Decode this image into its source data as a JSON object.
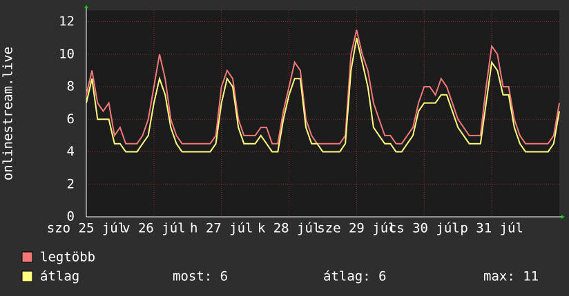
{
  "chart_data": {
    "type": "line",
    "y_axis_label": "onlinestream.live",
    "x": [
      0,
      2,
      4,
      6,
      8,
      10,
      12,
      14,
      16,
      18,
      20,
      22,
      24,
      26,
      28,
      30,
      32,
      34,
      36,
      38,
      40,
      42,
      44,
      46,
      48,
      50,
      52,
      54,
      56,
      58,
      60,
      62,
      64,
      66,
      68,
      70,
      72,
      74,
      76,
      78,
      80,
      82,
      84,
      86,
      88,
      90,
      92,
      94,
      96,
      98,
      100,
      102,
      104,
      106,
      108,
      110,
      112,
      114,
      116,
      118,
      120,
      122,
      124,
      126,
      128,
      130,
      132,
      134,
      136,
      138,
      140,
      142,
      144,
      146,
      148,
      150,
      152,
      154,
      156,
      158,
      160,
      162,
      164,
      166,
      168
    ],
    "xlim": [
      0,
      168
    ],
    "xticks": [
      {
        "value": 0,
        "label": "szo 25 júl"
      },
      {
        "value": 24,
        "label": "v 26 júl"
      },
      {
        "value": 48,
        "label": "h 27 júl"
      },
      {
        "value": 72,
        "label": "k 28 júl"
      },
      {
        "value": 96,
        "label": "sze 29 júl"
      },
      {
        "value": 120,
        "label": "cs 30 júl"
      },
      {
        "value": 144,
        "label": "p 31 júl"
      }
    ],
    "ylim": [
      0,
      12.7
    ],
    "yticks": [
      0,
      2,
      4,
      6,
      8,
      10,
      12
    ],
    "grid": true,
    "series": [
      {
        "name": "legtöbb",
        "color": "#f07878",
        "values": [
          7.5,
          9,
          7,
          6.5,
          7,
          5,
          5.5,
          4.5,
          4.5,
          4.5,
          5,
          6,
          8,
          10,
          8.5,
          6,
          5,
          4.5,
          4.5,
          4.5,
          4.5,
          4.5,
          4.5,
          5,
          8,
          9,
          8.5,
          6,
          5,
          5,
          5,
          5.5,
          5.5,
          4.5,
          4.5,
          6.5,
          8,
          9.5,
          9,
          6,
          5,
          4.5,
          4.5,
          4.5,
          4.5,
          4.5,
          5,
          10,
          11.5,
          10,
          9,
          7,
          6,
          5,
          5,
          4.5,
          4.5,
          5,
          5.5,
          7,
          8,
          8,
          7.5,
          8.5,
          8,
          7,
          6,
          5.5,
          5,
          5,
          5,
          8,
          10.5,
          10,
          8,
          8,
          6,
          5,
          4.5,
          4.5,
          4.5,
          4.5,
          4.5,
          5,
          7
        ]
      },
      {
        "name": "átlag",
        "color": "#ffff80",
        "values": [
          7,
          8.5,
          6,
          6,
          6,
          4.5,
          4.5,
          4,
          4,
          4,
          4.5,
          5,
          7,
          8.5,
          7.5,
          5.5,
          4.5,
          4,
          4,
          4,
          4,
          4,
          4,
          4.5,
          7,
          8.5,
          8,
          5.5,
          4.5,
          4.5,
          4.5,
          5,
          4.5,
          4,
          4,
          6,
          7.5,
          8.5,
          8.5,
          5.5,
          4.5,
          4.5,
          4,
          4,
          4,
          4,
          4.5,
          9,
          11,
          9.5,
          8,
          5.5,
          5,
          4.5,
          4.5,
          4,
          4,
          4.5,
          5,
          6.5,
          7,
          7,
          7,
          7.5,
          7.5,
          6.5,
          5.5,
          5,
          4.5,
          4.5,
          4.5,
          7,
          9.5,
          9,
          7.5,
          7.5,
          5.5,
          4.5,
          4,
          4,
          4,
          4,
          4,
          4.5,
          6.5
        ]
      }
    ],
    "stats": [
      "most: 6",
      "átlag: 6",
      "max: 11"
    ]
  }
}
